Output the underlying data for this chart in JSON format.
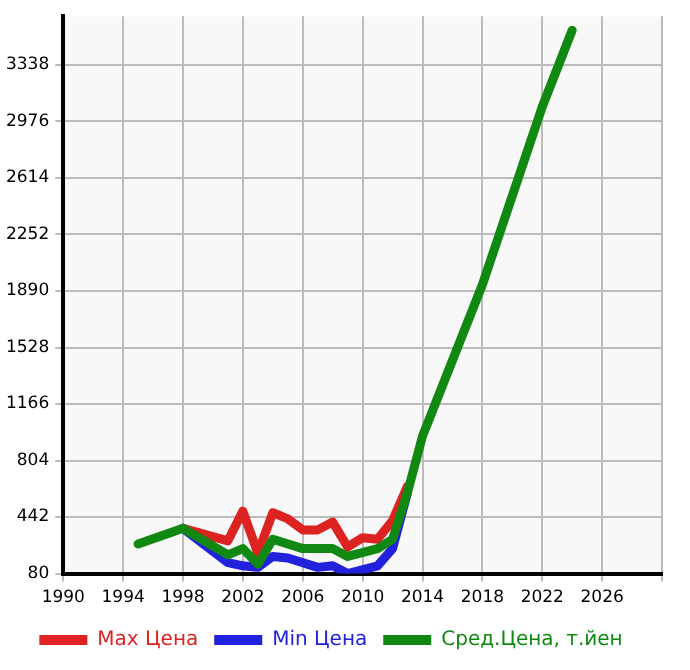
{
  "chart_data": {
    "type": "line",
    "x": [
      1995,
      1998,
      2001,
      2002,
      2003,
      2004,
      2005,
      2006,
      2007,
      2008,
      2009,
      2010,
      2011,
      2012,
      2013,
      2014,
      2018,
      2022,
      2024
    ],
    "series": [
      {
        "name": "Max Цена",
        "color": "#dd2222",
        "values": [
          null,
          370,
          290,
          480,
          210,
          470,
          430,
          360,
          360,
          410,
          250,
          310,
          300,
          420,
          640,
          null,
          null,
          null,
          null
        ]
      },
      {
        "name": "Min Цена",
        "color": "#2222dd",
        "values": [
          null,
          370,
          150,
          130,
          120,
          190,
          180,
          null,
          120,
          130,
          80,
          null,
          130,
          240,
          600,
          null,
          null,
          null,
          null
        ]
      },
      {
        "name": "Сред.Цена, т.йен",
        "color": "#118811",
        "values": [
          270,
          370,
          200,
          240,
          140,
          300,
          null,
          240,
          null,
          240,
          190,
          null,
          240,
          300,
          600,
          960,
          1930,
          3070,
          3560
        ]
      }
    ],
    "xlim": [
      1990,
      2030
    ],
    "xticks": [
      1990,
      1994,
      1998,
      2002,
      2006,
      2010,
      2014,
      2018,
      2022,
      2026,
      {
        "value": 2030,
        "label": null
      }
    ],
    "ylim": [
      80,
      3650
    ],
    "yticks": [
      80,
      442,
      804,
      1166,
      1528,
      1890,
      2252,
      2614,
      2976,
      3338
    ],
    "grid": true,
    "legend": "bottom",
    "marker": "none",
    "line_style": "solid"
  }
}
